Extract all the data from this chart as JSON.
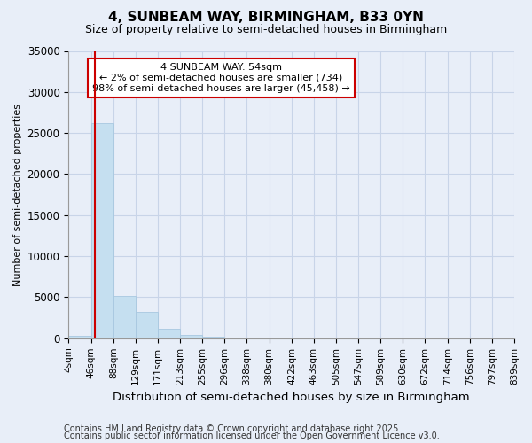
{
  "title": "4, SUNBEAM WAY, BIRMINGHAM, B33 0YN",
  "subtitle": "Size of property relative to semi-detached houses in Birmingham",
  "xlabel": "Distribution of semi-detached houses by size in Birmingham",
  "ylabel": "Number of semi-detached properties",
  "property_size": 54,
  "annotation_title": "4 SUNBEAM WAY: 54sqm",
  "annotation_line1": "← 2% of semi-detached houses are smaller (734)",
  "annotation_line2": "98% of semi-detached houses are larger (45,458) →",
  "footnote1": "Contains HM Land Registry data © Crown copyright and database right 2025.",
  "footnote2": "Contains public sector information licensed under the Open Government Licence v3.0.",
  "bar_color": "#c5dff0",
  "bar_edge_color": "#a8c8e0",
  "vline_color": "#cc0000",
  "annotation_box_color": "#cc0000",
  "background_color": "#e8eef8",
  "plot_bg_color": "#e8eef8",
  "grid_color": "#c8d4e8",
  "bin_edges": [
    4,
    46,
    88,
    129,
    171,
    213,
    255,
    296,
    338,
    380,
    422,
    463,
    505,
    547,
    589,
    630,
    672,
    714,
    756,
    797,
    839
  ],
  "bin_labels": [
    "4sqm",
    "46sqm",
    "88sqm",
    "129sqm",
    "171sqm",
    "213sqm",
    "255sqm",
    "296sqm",
    "338sqm",
    "380sqm",
    "422sqm",
    "463sqm",
    "505sqm",
    "547sqm",
    "589sqm",
    "630sqm",
    "672sqm",
    "714sqm",
    "756sqm",
    "797sqm",
    "839sqm"
  ],
  "bar_heights": [
    300,
    26200,
    5200,
    3200,
    1200,
    400,
    200,
    0,
    0,
    0,
    0,
    0,
    0,
    0,
    0,
    0,
    0,
    0,
    0,
    0
  ],
  "ylim": [
    0,
    35000
  ],
  "yticks": [
    0,
    5000,
    10000,
    15000,
    20000,
    25000,
    30000,
    35000
  ]
}
